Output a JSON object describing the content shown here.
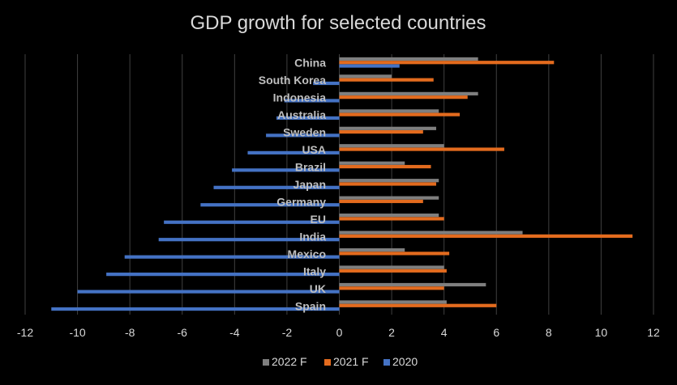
{
  "chart_data": {
    "type": "bar",
    "orientation": "horizontal",
    "title": "GDP growth for selected countries",
    "xlabel": "",
    "ylabel": "",
    "xlim": [
      -12,
      12
    ],
    "xticks": [
      "-12",
      "-10",
      "-8",
      "-6",
      "-4",
      "-2",
      "0",
      "2",
      "4",
      "6",
      "8",
      "10",
      "12"
    ],
    "grid": true,
    "legend_position": "bottom",
    "categories": [
      "China",
      "South Korea",
      "Indonesia",
      "Australia",
      "Sweden",
      "USA",
      "Brazil",
      "Japan",
      "Germany",
      "EU",
      "India",
      "Mexico",
      "Italy",
      "UK",
      "Spain"
    ],
    "series": [
      {
        "name": "2022 F",
        "color": "#7f7f7f",
        "values": [
          5.3,
          2.0,
          5.3,
          3.8,
          3.7,
          4.0,
          2.5,
          3.8,
          3.8,
          3.8,
          7.0,
          2.5,
          4.0,
          5.6,
          4.1
        ]
      },
      {
        "name": "2021 F",
        "color": "#e36b1e",
        "values": [
          8.2,
          3.6,
          4.9,
          4.6,
          3.2,
          6.3,
          3.5,
          3.7,
          3.2,
          4.0,
          11.2,
          4.2,
          4.1,
          4.0,
          6.0
        ]
      },
      {
        "name": "2020",
        "color": "#4472c4",
        "values": [
          2.3,
          -1.0,
          -2.1,
          -2.4,
          -2.8,
          -3.5,
          -4.1,
          -4.8,
          -5.3,
          -6.7,
          -6.9,
          -8.2,
          -8.9,
          -10.0,
          -11.0
        ]
      }
    ]
  }
}
